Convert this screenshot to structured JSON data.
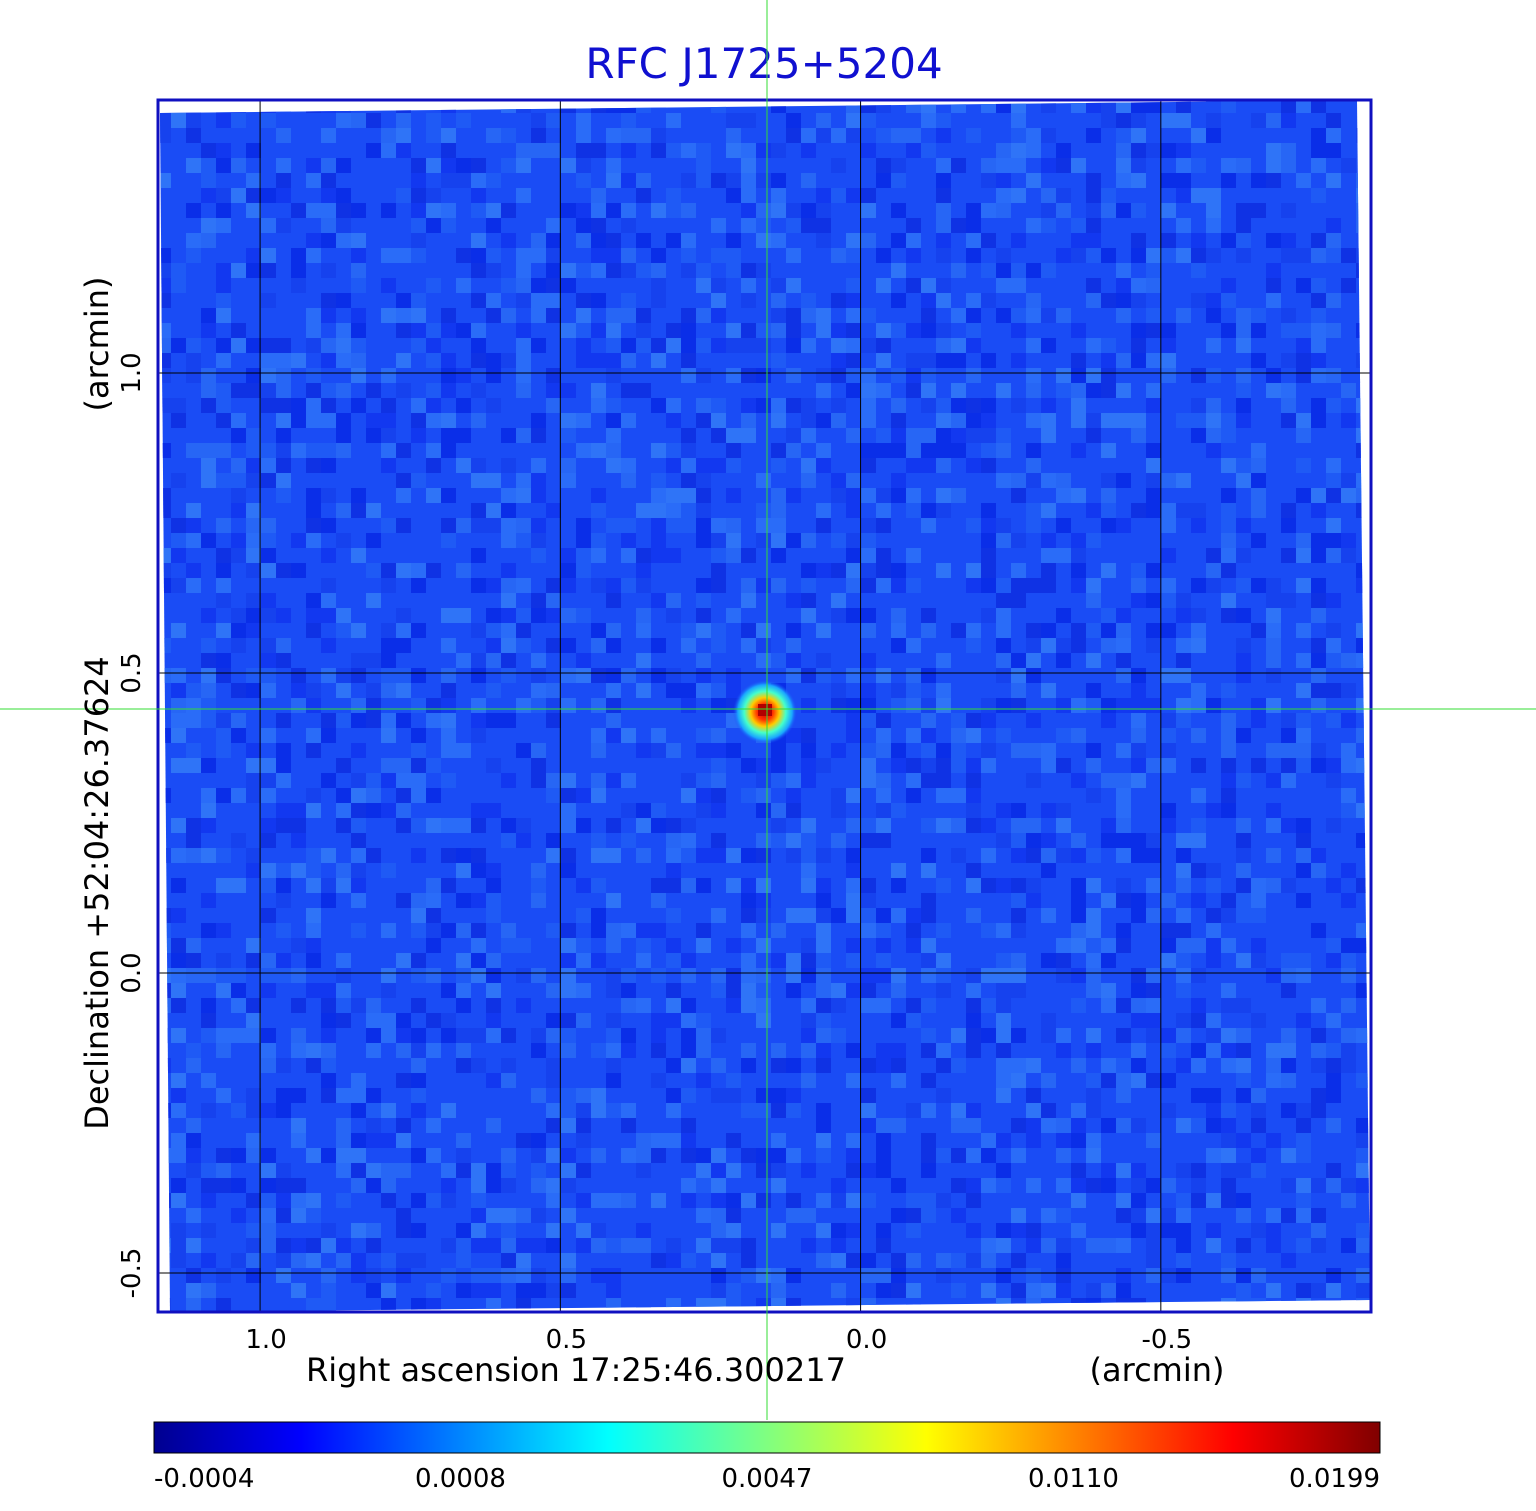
{
  "title": "RFC J1725+5204",
  "image": {
    "xlabel": "Right ascension  17:25:46.300217",
    "xunit": "(arcmin)",
    "ylabel": "Declination  +52:04:26.37624",
    "yunit": "(arcmin)",
    "x_ticks": [
      "1.0",
      "0.5",
      "0.0",
      "-0.5"
    ],
    "y_ticks": [
      "1.0",
      "0.5",
      "0.0",
      "-0.5"
    ],
    "x_tick_values": [
      1.0,
      0.5,
      0.0,
      -0.5
    ],
    "y_tick_values": [
      1.0,
      0.5,
      0.0,
      -0.5
    ],
    "x_range": [
      1.17,
      -0.85
    ],
    "y_range": [
      -0.565,
      1.455
    ],
    "grid": true,
    "source_position": [
      0.16,
      0.44
    ],
    "crosshair_color": "#33dd33",
    "frame_color": "#1010c0",
    "background_color": "#1a4cf5"
  },
  "colorbar": {
    "ticks": [
      "-0.0004",
      "0.0008",
      "0.0047",
      "0.0110",
      "0.0199"
    ],
    "colormap": [
      "#00008f",
      "#0000ff",
      "#00ffff",
      "#ffff00",
      "#ff0000",
      "#800000"
    ]
  }
}
